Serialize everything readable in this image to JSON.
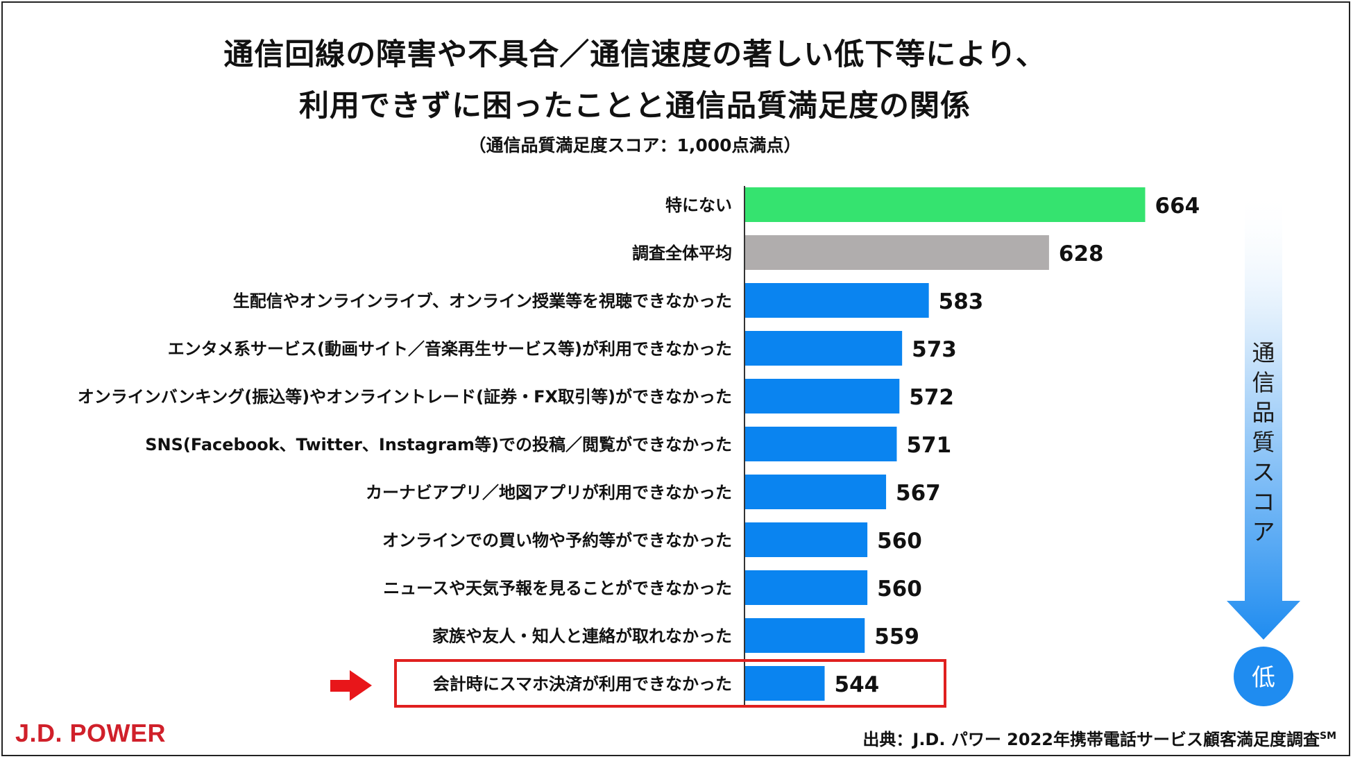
{
  "title_line1": "通信回線の障害や不具合／通信速度の著しい低下等により、",
  "title_line2": "利用できずに困ったことと通信品質満足度の関係",
  "subtitle": "（通信品質満足度スコア：1,000点満点）",
  "side_label": "通信品質スコア",
  "side_low": "低",
  "logo": "J.D. POWER",
  "source": "出典：J.D. パワー 2022年携帯電話サービス顧客満足度調査",
  "source_mark": "SM",
  "colors": {
    "highlight_green": "#35e36f",
    "average_gray": "#b0adad",
    "bar_blue": "#0a84f0",
    "red_box": "#e0201f",
    "arrow_red": "#e8161a",
    "side_arrow_blue": "#1f8cf0"
  },
  "chart_data": {
    "type": "bar",
    "orientation": "horizontal",
    "categories": [
      "特にない",
      "調査全体平均",
      "生配信やオンラインライブ、オンライン授業等を視聴できなかった",
      "エンタメ系サービス(動画サイト／音楽再生サービス等)が利用できなかった",
      "オンラインバンキング(振込等)やオンライントレード(証券・FX取引等)ができなかった",
      "SNS(Facebook、Twitter、Instagram等)での投稿／閲覧ができなかった",
      "カーナビアプリ／地図アプリが利用できなかった",
      "オンラインでの買い物や予約等ができなかった",
      "ニュースや天気予報を見ることができなかった",
      "家族や友人・知人と連絡が取れなかった",
      "会計時にスマホ決済が利用できなかった"
    ],
    "values": [
      664,
      628,
      583,
      573,
      572,
      571,
      567,
      560,
      560,
      559,
      544
    ],
    "value_labels": [
      "664",
      "628",
      "583",
      "573",
      "572",
      "571",
      "567",
      "560",
      "560",
      "559",
      "544"
    ],
    "bar_colors": [
      "#35e36f",
      "#b0adad",
      "#0a84f0",
      "#0a84f0",
      "#0a84f0",
      "#0a84f0",
      "#0a84f0",
      "#0a84f0",
      "#0a84f0",
      "#0a84f0",
      "#0a84f0"
    ],
    "highlighted_category": "会計時にスマホ決済が利用できなかった",
    "xlim": [
      514,
      664
    ],
    "grid": false,
    "legend": "none"
  }
}
